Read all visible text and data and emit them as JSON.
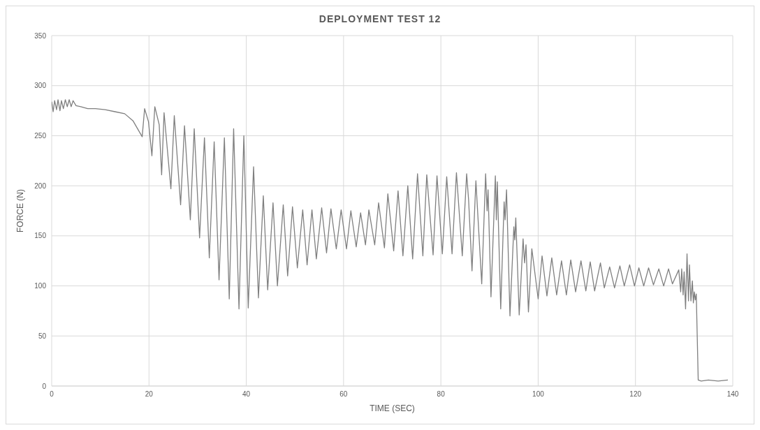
{
  "chart_data": {
    "type": "line",
    "title": "DEPLOYMENT  TEST 12",
    "xlabel": "TIME (SEC)",
    "ylabel": "FORCE (N)",
    "x": [
      0,
      0.3,
      0.6,
      1,
      1.3,
      1.7,
      2,
      2.4,
      2.8,
      3.2,
      3.6,
      4,
      4.4,
      5,
      6,
      7.4,
      9,
      11,
      13,
      15,
      16.7,
      18.6,
      19.1,
      19.9,
      20.6,
      21.2,
      22.1,
      22.6,
      23.1,
      24.5,
      25.2,
      26.5,
      27.3,
      28.5,
      29.3,
      30.4,
      31.4,
      32.4,
      33.4,
      34.4,
      35.5,
      36.5,
      37.4,
      38.5,
      39.5,
      40.4,
      41.5,
      42.5,
      43.5,
      44.4,
      45.5,
      46.4,
      47.6,
      48.5,
      49.5,
      50.5,
      51.6,
      52.5,
      53.5,
      54.4,
      55.5,
      56.5,
      57.4,
      58.5,
      59.5,
      60.6,
      61.5,
      62.6,
      63.5,
      64.5,
      65.2,
      66.4,
      67.2,
      68.4,
      69.1,
      70.3,
      71.2,
      72.2,
      73.2,
      74.2,
      75.2,
      76.3,
      77.1,
      78.4,
      79.2,
      80.3,
      81.2,
      82.3,
      83.2,
      84.4,
      85.3,
      85.7,
      86.4,
      87.2,
      88.4,
      89.2,
      89.5,
      89.7,
      90.3,
      91.2,
      91.4,
      91.6,
      92.3,
      93.0,
      93.2,
      93.5,
      94.2,
      95.0,
      95.2,
      95.4,
      96.1,
      96.9,
      97.2,
      97.5,
      98.0,
      98.7,
      100.0,
      100.8,
      101.8,
      102.8,
      103.8,
      104.8,
      105.8,
      106.7,
      107.7,
      108.8,
      109.8,
      110.7,
      111.6,
      112.8,
      113.6,
      114.7,
      115.7,
      116.8,
      117.7,
      118.8,
      119.8,
      120.7,
      121.7,
      122.7,
      123.7,
      124.8,
      125.8,
      126.8,
      127.6,
      128.9,
      129.3,
      129.5,
      129.8,
      130.0,
      130.3,
      130.6,
      130.9,
      131.1,
      131.4,
      131.7,
      131.9,
      132.1,
      132.3,
      132.5,
      132.9,
      133.5,
      135,
      137,
      139
    ],
    "series": [
      {
        "color": "#7f7f7f",
        "values": [
          284,
          274,
          285,
          276,
          286,
          275,
          285,
          277,
          286,
          279,
          286,
          279,
          285,
          280,
          279,
          277,
          277,
          276,
          274,
          272,
          265,
          249,
          277,
          264,
          230,
          279,
          261,
          211,
          273,
          197,
          270,
          181,
          260,
          166,
          257,
          148,
          248,
          128,
          244,
          106,
          248,
          87,
          257,
          77,
          250,
          78,
          219,
          88,
          190,
          96,
          183,
          100,
          181,
          110,
          179,
          118,
          176,
          121,
          176,
          127,
          178,
          133,
          177,
          137,
          176,
          137,
          175,
          139,
          173,
          141,
          176,
          141,
          183,
          138,
          192,
          135,
          195,
          130,
          200,
          127,
          212,
          130,
          211,
          131,
          210,
          132,
          209,
          132,
          213,
          130,
          212,
          186,
          115,
          205,
          102,
          212,
          175,
          196,
          89,
          210,
          166,
          204,
          77,
          184,
          166,
          196,
          70,
          159,
          146,
          168,
          71,
          147,
          123,
          141,
          74,
          137,
          87,
          130,
          90,
          128,
          91,
          125,
          91,
          126,
          94,
          125,
          95,
          124,
          95,
          123,
          98,
          119,
          98,
          120,
          100,
          121,
          100,
          118,
          100,
          118,
          101,
          117,
          100,
          117,
          102,
          116,
          94,
          117,
          91,
          114,
          77,
          132,
          85,
          121,
          85,
          105,
          83,
          94,
          86,
          92,
          6,
          5,
          6,
          5,
          6
        ]
      }
    ],
    "xlim": [
      0,
      140
    ],
    "xticks": [
      0,
      20,
      40,
      60,
      80,
      100,
      120,
      140
    ],
    "ylim": [
      0,
      350
    ],
    "yticks": [
      0,
      50,
      100,
      150,
      200,
      250,
      300,
      350
    ],
    "grid": true,
    "legend": false,
    "marker": "none",
    "line_style": "solid"
  }
}
